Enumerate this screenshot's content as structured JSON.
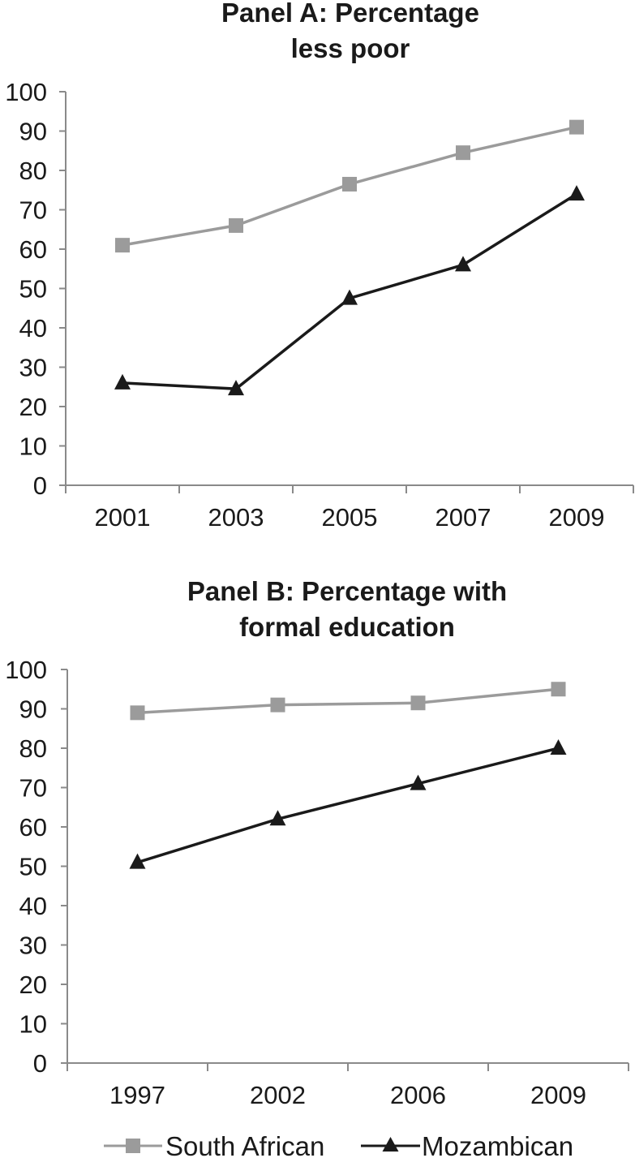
{
  "chart_data": [
    {
      "type": "line",
      "title_lines": [
        "Panel A: Percentage",
        "less poor"
      ],
      "xlabel": "",
      "ylabel": "",
      "categories": [
        "2001",
        "2003",
        "2005",
        "2007",
        "2009"
      ],
      "ylim": [
        0,
        100
      ],
      "yticks": [
        0,
        10,
        20,
        30,
        40,
        50,
        60,
        70,
        80,
        90,
        100
      ],
      "grid": false,
      "series": [
        {
          "name": "South African",
          "values": [
            61,
            66,
            76.5,
            84.5,
            91
          ],
          "color": "#9b9b9b",
          "marker": "square"
        },
        {
          "name": "Mozambican",
          "values": [
            26,
            24.5,
            47.5,
            56,
            74
          ],
          "color": "#1a1a1a",
          "marker": "triangle"
        }
      ]
    },
    {
      "type": "line",
      "title_lines": [
        "Panel B: Percentage with",
        "formal education"
      ],
      "xlabel": "",
      "ylabel": "",
      "categories": [
        "1997",
        "2002",
        "2006",
        "2009"
      ],
      "ylim": [
        0,
        100
      ],
      "yticks": [
        0,
        10,
        20,
        30,
        40,
        50,
        60,
        70,
        80,
        90,
        100
      ],
      "grid": false,
      "series": [
        {
          "name": "South African",
          "values": [
            89,
            91,
            91.5,
            95
          ],
          "color": "#9b9b9b",
          "marker": "square"
        },
        {
          "name": "Mozambican",
          "values": [
            51,
            62,
            71,
            80
          ],
          "color": "#1a1a1a",
          "marker": "triangle"
        }
      ]
    }
  ],
  "legend": {
    "placement": "bottom",
    "items": [
      {
        "label": "South African",
        "color": "#9b9b9b",
        "marker": "square"
      },
      {
        "label": "Mozambican",
        "color": "#1a1a1a",
        "marker": "triangle"
      }
    ]
  }
}
